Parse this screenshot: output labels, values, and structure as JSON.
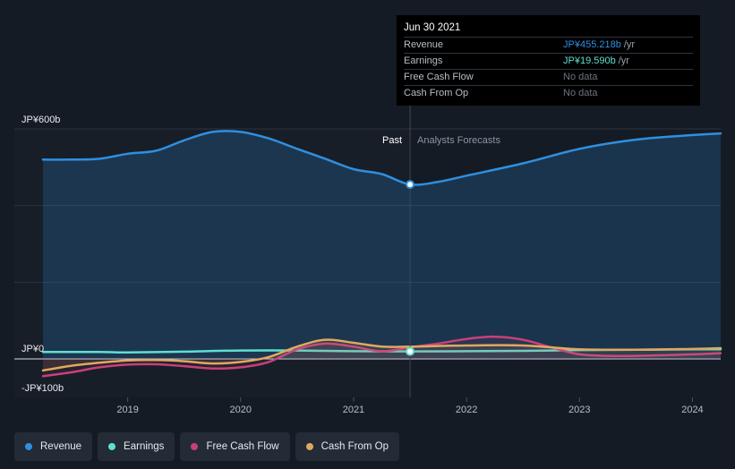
{
  "chart_data": {
    "type": "area",
    "y_axis": {
      "labels": [
        "JP¥600b",
        "JP¥0",
        "-JP¥100b"
      ],
      "ylim": [
        -100,
        600
      ],
      "unit": "JP¥ billions"
    },
    "x_axis": {
      "ticks": [
        "2019",
        "2020",
        "2021",
        "2022",
        "2023",
        "2024"
      ],
      "tick_values": [
        2019,
        2020,
        2021,
        2022,
        2023,
        2024
      ],
      "xlim": [
        2018.25,
        2024.25
      ]
    },
    "divider": {
      "x": 2021.5,
      "past_label": "Past",
      "forecast_label": "Analysts Forecasts"
    },
    "series": [
      {
        "name": "Revenue",
        "color": "#2f8fe0",
        "filled": true,
        "points": [
          [
            2018.25,
            520
          ],
          [
            2018.5,
            520
          ],
          [
            2018.75,
            522
          ],
          [
            2019.0,
            535
          ],
          [
            2019.25,
            543
          ],
          [
            2019.5,
            570
          ],
          [
            2019.75,
            592
          ],
          [
            2020.0,
            592
          ],
          [
            2020.25,
            575
          ],
          [
            2020.5,
            548
          ],
          [
            2020.75,
            522
          ],
          [
            2021.0,
            495
          ],
          [
            2021.25,
            482
          ],
          [
            2021.5,
            455
          ],
          [
            2021.75,
            462
          ],
          [
            2022.0,
            478
          ],
          [
            2022.5,
            510
          ],
          [
            2023.0,
            548
          ],
          [
            2023.5,
            572
          ],
          [
            2024.0,
            584
          ],
          [
            2024.25,
            588
          ]
        ]
      },
      {
        "name": "Earnings",
        "color": "#5ee0d0",
        "filled": false,
        "points": [
          [
            2018.25,
            18
          ],
          [
            2018.75,
            18
          ],
          [
            2019.0,
            17
          ],
          [
            2019.5,
            19
          ],
          [
            2020.0,
            22
          ],
          [
            2020.5,
            22
          ],
          [
            2021.0,
            20
          ],
          [
            2021.5,
            19.59
          ],
          [
            2022.0,
            20
          ],
          [
            2022.5,
            21
          ],
          [
            2023.0,
            23
          ],
          [
            2023.5,
            24
          ],
          [
            2024.0,
            25
          ],
          [
            2024.25,
            25
          ]
        ]
      },
      {
        "name": "Free Cash Flow",
        "color": "#c8407a",
        "filled": false,
        "points": [
          [
            2018.25,
            -45
          ],
          [
            2018.5,
            -35
          ],
          [
            2018.75,
            -22
          ],
          [
            2019.0,
            -15
          ],
          [
            2019.25,
            -14
          ],
          [
            2019.5,
            -19
          ],
          [
            2019.75,
            -25
          ],
          [
            2020.0,
            -22
          ],
          [
            2020.25,
            -8
          ],
          [
            2020.5,
            25
          ],
          [
            2020.75,
            40
          ],
          [
            2021.0,
            32
          ],
          [
            2021.25,
            20
          ],
          [
            2021.5,
            30
          ],
          [
            2021.75,
            40
          ],
          [
            2022.0,
            52
          ],
          [
            2022.25,
            58
          ],
          [
            2022.5,
            50
          ],
          [
            2022.75,
            30
          ],
          [
            2023.0,
            12
          ],
          [
            2023.25,
            8
          ],
          [
            2023.5,
            8
          ],
          [
            2024.0,
            12
          ],
          [
            2024.25,
            15
          ]
        ]
      },
      {
        "name": "Cash From Op",
        "color": "#e0a860",
        "filled": false,
        "points": [
          [
            2018.25,
            -30
          ],
          [
            2018.5,
            -18
          ],
          [
            2018.75,
            -10
          ],
          [
            2019.0,
            -4
          ],
          [
            2019.25,
            -3
          ],
          [
            2019.5,
            -6
          ],
          [
            2019.75,
            -12
          ],
          [
            2020.0,
            -8
          ],
          [
            2020.25,
            5
          ],
          [
            2020.5,
            32
          ],
          [
            2020.75,
            50
          ],
          [
            2021.0,
            42
          ],
          [
            2021.25,
            32
          ],
          [
            2021.5,
            32
          ],
          [
            2022.0,
            35
          ],
          [
            2022.5,
            35
          ],
          [
            2023.0,
            25
          ],
          [
            2023.5,
            24
          ],
          [
            2024.0,
            26
          ],
          [
            2024.25,
            28
          ]
        ]
      }
    ],
    "highlight": {
      "x": 2021.5,
      "series": [
        "Revenue",
        "Earnings"
      ]
    }
  },
  "tooltip": {
    "date": "Jun 30 2021",
    "rows": [
      {
        "label": "Revenue",
        "value": "JP¥455.218b",
        "unit": "/yr",
        "color": "#2f8fe0"
      },
      {
        "label": "Earnings",
        "value": "JP¥19.590b",
        "unit": "/yr",
        "color": "#5ee0d0"
      },
      {
        "label": "Free Cash Flow",
        "value": "No data",
        "unit": "",
        "color": "#6b7380"
      },
      {
        "label": "Cash From Op",
        "value": "No data",
        "unit": "",
        "color": "#6b7380"
      }
    ]
  },
  "legend": [
    {
      "label": "Revenue",
      "color": "#2f8fe0"
    },
    {
      "label": "Earnings",
      "color": "#5ee0d0"
    },
    {
      "label": "Free Cash Flow",
      "color": "#c8407a"
    },
    {
      "label": "Cash From Op",
      "color": "#e0a860"
    }
  ]
}
